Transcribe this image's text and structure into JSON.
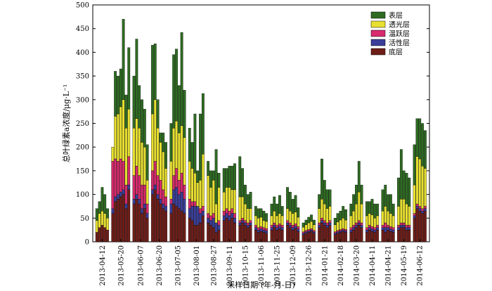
{
  "chart_data": {
    "type": "bar",
    "stacked": true,
    "xlabel": "采样日期 (年-月-日)",
    "ylabel": "总叶绿素a浓度/μg·L⁻¹",
    "ylim": [
      0,
      500
    ],
    "yticks": [
      0,
      50,
      100,
      150,
      200,
      250,
      300,
      350,
      400,
      450,
      500
    ],
    "grid": false,
    "legend_position": "top-right",
    "legend_order": [
      "表层",
      "透光层",
      "温跃层",
      "活性层",
      "底层"
    ],
    "groups": [
      {
        "date": "2013-04-12",
        "values": [
          {
            "bottom": 20,
            "active": 0,
            "thermo": 0,
            "photic": 25,
            "surface": 25
          },
          {
            "bottom": 30,
            "active": 0,
            "thermo": 0,
            "photic": 30,
            "surface": 25
          },
          {
            "bottom": 35,
            "active": 0,
            "thermo": 0,
            "photic": 30,
            "surface": 50
          },
          {
            "bottom": 30,
            "active": 0,
            "thermo": 0,
            "photic": 30,
            "surface": 40
          },
          {
            "bottom": 25,
            "active": 0,
            "thermo": 0,
            "photic": 25,
            "surface": 20
          }
        ]
      },
      {
        "date": "2013-05-20",
        "values": [
          {
            "bottom": 60,
            "active": 10,
            "thermo": 100,
            "photic": 30,
            "surface": 0
          },
          {
            "bottom": 85,
            "active": 10,
            "thermo": 80,
            "photic": 90,
            "surface": 95
          },
          {
            "bottom": 90,
            "active": 10,
            "thermo": 70,
            "photic": 100,
            "surface": 80
          },
          {
            "bottom": 95,
            "active": 10,
            "thermo": 70,
            "photic": 110,
            "surface": 80
          },
          {
            "bottom": 100,
            "active": 10,
            "thermo": 60,
            "photic": 130,
            "surface": 170
          },
          {
            "bottom": 70,
            "active": 10,
            "thermo": 40,
            "photic": 120,
            "surface": 70
          },
          {
            "bottom": 110,
            "active": 10,
            "thermo": 60,
            "photic": 100,
            "surface": 130
          }
        ]
      },
      {
        "date": "2013-06-07",
        "values": [
          {
            "bottom": 80,
            "active": 10,
            "thermo": 50,
            "photic": 100,
            "surface": 110
          },
          {
            "bottom": 90,
            "active": 10,
            "thermo": 60,
            "photic": 100,
            "surface": 168
          },
          {
            "bottom": 80,
            "active": 10,
            "thermo": 50,
            "photic": 100,
            "surface": 90
          },
          {
            "bottom": 60,
            "active": 10,
            "thermo": 50,
            "photic": 90,
            "surface": 90
          },
          {
            "bottom": 70,
            "active": 10,
            "thermo": 40,
            "photic": 80,
            "surface": 80
          },
          {
            "bottom": 50,
            "active": 10,
            "thermo": 20,
            "photic": 50,
            "surface": 75
          }
        ]
      },
      {
        "date": "2013-06-20",
        "values": [
          {
            "bottom": 100,
            "active": 10,
            "thermo": 40,
            "photic": 120,
            "surface": 145
          },
          {
            "bottom": 110,
            "active": 10,
            "thermo": 50,
            "photic": 130,
            "surface": 118
          },
          {
            "bottom": 90,
            "active": 10,
            "thermo": 40,
            "photic": 100,
            "surface": 60
          },
          {
            "bottom": 80,
            "active": 10,
            "thermo": 40,
            "photic": 80,
            "surface": 20
          },
          {
            "bottom": 70,
            "active": 10,
            "thermo": 30,
            "photic": 80,
            "surface": 40
          },
          {
            "bottom": 65,
            "active": 10,
            "thermo": 20,
            "photic": 60,
            "surface": 55
          }
        ]
      },
      {
        "date": "2013-07-05",
        "values": [
          {
            "bottom": 60,
            "active": 20,
            "thermo": 10,
            "photic": 80,
            "surface": 80
          },
          {
            "bottom": 80,
            "active": 30,
            "thermo": 30,
            "photic": 100,
            "surface": 155
          },
          {
            "bottom": 75,
            "active": 40,
            "thermo": 40,
            "photic": 100,
            "surface": 152
          },
          {
            "bottom": 70,
            "active": 30,
            "thermo": 30,
            "photic": 100,
            "surface": 100
          },
          {
            "bottom": 65,
            "active": 40,
            "thermo": 40,
            "photic": 100,
            "surface": 197
          },
          {
            "bottom": 60,
            "active": 30,
            "thermo": 30,
            "photic": 100,
            "surface": 100
          }
        ]
      },
      {
        "date": "2013-08-01",
        "values": [
          {
            "bottom": 50,
            "active": 20,
            "thermo": 20,
            "photic": 80,
            "surface": 70
          },
          {
            "bottom": 45,
            "active": 30,
            "thermo": 10,
            "photic": 70,
            "surface": 55
          },
          {
            "bottom": 35,
            "active": 40,
            "thermo": 10,
            "photic": 60,
            "surface": 125
          },
          {
            "bottom": 35,
            "active": 40,
            "thermo": 0,
            "photic": 50,
            "surface": 25
          },
          {
            "bottom": 40,
            "active": 20,
            "thermo": 10,
            "photic": 60,
            "surface": 140
          },
          {
            "bottom": 55,
            "active": 10,
            "thermo": 10,
            "photic": 110,
            "surface": 128
          }
        ]
      },
      {
        "date": "2013-08-27",
        "values": [
          {
            "bottom": 40,
            "active": 10,
            "thermo": 10,
            "photic": 80,
            "surface": 30
          },
          {
            "bottom": 35,
            "active": 10,
            "thermo": 10,
            "photic": 60,
            "surface": 35
          },
          {
            "bottom": 30,
            "active": 20,
            "thermo": 10,
            "photic": 70,
            "surface": 20
          },
          {
            "bottom": 20,
            "active": 20,
            "thermo": 0,
            "photic": 40,
            "surface": 115
          },
          {
            "bottom": 25,
            "active": 10,
            "thermo": 10,
            "photic": 70,
            "surface": 30
          }
        ]
      },
      {
        "date": "2013-09-11",
        "values": [
          {
            "bottom": 45,
            "active": 10,
            "thermo": 10,
            "photic": 40,
            "surface": 50
          },
          {
            "bottom": 50,
            "active": 10,
            "thermo": 10,
            "photic": 45,
            "surface": 40
          },
          {
            "bottom": 45,
            "active": 10,
            "thermo": 10,
            "photic": 50,
            "surface": 45
          },
          {
            "bottom": 50,
            "active": 10,
            "thermo": 10,
            "photic": 40,
            "surface": 50
          },
          {
            "bottom": 40,
            "active": 10,
            "thermo": 10,
            "photic": 50,
            "surface": 55
          }
        ]
      },
      {
        "date": "2013-10-15",
        "values": [
          {
            "bottom": 35,
            "active": 5,
            "thermo": 5,
            "photic": 50,
            "surface": 85
          },
          {
            "bottom": 40,
            "active": 5,
            "thermo": 5,
            "photic": 45,
            "surface": 60
          },
          {
            "bottom": 35,
            "active": 5,
            "thermo": 5,
            "photic": 35,
            "surface": 40
          },
          {
            "bottom": 30,
            "active": 5,
            "thermo": 5,
            "photic": 30,
            "surface": 30
          },
          {
            "bottom": 35,
            "active": 5,
            "thermo": 5,
            "photic": 25,
            "surface": 35
          }
        ]
      },
      {
        "date": "2013-11-06",
        "values": [
          {
            "bottom": 25,
            "active": 5,
            "thermo": 5,
            "photic": 20,
            "surface": 20
          },
          {
            "bottom": 20,
            "active": 5,
            "thermo": 5,
            "photic": 20,
            "surface": 20
          },
          {
            "bottom": 22,
            "active": 5,
            "thermo": 5,
            "photic": 20,
            "surface": 18
          },
          {
            "bottom": 20,
            "active": 5,
            "thermo": 5,
            "photic": 15,
            "surface": 20
          },
          {
            "bottom": 18,
            "active": 5,
            "thermo": 5,
            "photic": 15,
            "surface": 17
          }
        ]
      },
      {
        "date": "2013-11-25",
        "values": [
          {
            "bottom": 25,
            "active": 5,
            "thermo": 5,
            "photic": 20,
            "surface": 25
          },
          {
            "bottom": 30,
            "active": 5,
            "thermo": 5,
            "photic": 25,
            "surface": 30
          },
          {
            "bottom": 25,
            "active": 5,
            "thermo": 5,
            "photic": 20,
            "surface": 25
          },
          {
            "bottom": 28,
            "active": 5,
            "thermo": 5,
            "photic": 22,
            "surface": 38
          },
          {
            "bottom": 25,
            "active": 5,
            "thermo": 5,
            "photic": 20,
            "surface": 20
          }
        ]
      },
      {
        "date": "2013-12-09",
        "values": [
          {
            "bottom": 35,
            "active": 5,
            "thermo": 5,
            "photic": 25,
            "surface": 45
          },
          {
            "bottom": 30,
            "active": 5,
            "thermo": 5,
            "photic": 25,
            "surface": 40
          },
          {
            "bottom": 25,
            "active": 5,
            "thermo": 5,
            "photic": 25,
            "surface": 30
          },
          {
            "bottom": 28,
            "active": 5,
            "thermo": 5,
            "photic": 25,
            "surface": 35
          },
          {
            "bottom": 22,
            "active": 5,
            "thermo": 5,
            "photic": 20,
            "surface": 20
          }
        ]
      },
      {
        "date": "2013-12-26",
        "values": [
          {
            "bottom": 15,
            "active": 3,
            "thermo": 3,
            "photic": 10,
            "surface": 9
          },
          {
            "bottom": 18,
            "active": 3,
            "thermo": 3,
            "photic": 12,
            "surface": 10
          },
          {
            "bottom": 20,
            "active": 3,
            "thermo": 3,
            "photic": 14,
            "surface": 12
          },
          {
            "bottom": 22,
            "active": 3,
            "thermo": 3,
            "photic": 15,
            "surface": 14
          },
          {
            "bottom": 18,
            "active": 3,
            "thermo": 3,
            "photic": 12,
            "surface": 10
          }
        ]
      },
      {
        "date": "2014-01-21",
        "values": [
          {
            "bottom": 30,
            "active": 5,
            "thermo": 5,
            "photic": 30,
            "surface": 30
          },
          {
            "bottom": 40,
            "active": 5,
            "thermo": 5,
            "photic": 40,
            "surface": 85
          },
          {
            "bottom": 35,
            "active": 5,
            "thermo": 5,
            "photic": 35,
            "surface": 50
          },
          {
            "bottom": 30,
            "active": 5,
            "thermo": 5,
            "photic": 30,
            "surface": 40
          },
          {
            "bottom": 35,
            "active": 5,
            "thermo": 5,
            "photic": 30,
            "surface": 35
          }
        ]
      },
      {
        "date": "2014-02-18",
        "values": [
          {
            "bottom": 15,
            "active": 3,
            "thermo": 3,
            "photic": 15,
            "surface": 14
          },
          {
            "bottom": 18,
            "active": 3,
            "thermo": 3,
            "photic": 18,
            "surface": 18
          },
          {
            "bottom": 20,
            "active": 3,
            "thermo": 3,
            "photic": 20,
            "surface": 19
          },
          {
            "bottom": 22,
            "active": 3,
            "thermo": 3,
            "photic": 22,
            "surface": 25
          },
          {
            "bottom": 20,
            "active": 3,
            "thermo": 3,
            "photic": 20,
            "surface": 22
          }
        ]
      },
      {
        "date": "2014-03-20",
        "values": [
          {
            "bottom": 20,
            "active": 5,
            "thermo": 5,
            "photic": 25,
            "surface": 25
          },
          {
            "bottom": 25,
            "active": 5,
            "thermo": 5,
            "photic": 30,
            "surface": 35
          },
          {
            "bottom": 30,
            "active": 5,
            "thermo": 5,
            "photic": 40,
            "surface": 40
          },
          {
            "bottom": 35,
            "active": 5,
            "thermo": 5,
            "photic": 60,
            "surface": 65
          },
          {
            "bottom": 30,
            "active": 5,
            "thermo": 5,
            "photic": 40,
            "surface": 40
          }
        ]
      },
      {
        "date": "2014-04-11",
        "values": [
          {
            "bottom": 20,
            "active": 5,
            "thermo": 5,
            "photic": 25,
            "surface": 30
          },
          {
            "bottom": 25,
            "active": 5,
            "thermo": 5,
            "photic": 25,
            "surface": 25
          },
          {
            "bottom": 22,
            "active": 5,
            "thermo": 5,
            "photic": 25,
            "surface": 33
          },
          {
            "bottom": 20,
            "active": 5,
            "thermo": 5,
            "photic": 20,
            "surface": 30
          },
          {
            "bottom": 25,
            "active": 5,
            "thermo": 5,
            "photic": 20,
            "surface": 25
          }
        ]
      },
      {
        "date": "2014-04-21",
        "values": [
          {
            "bottom": 25,
            "active": 5,
            "thermo": 5,
            "photic": 30,
            "surface": 45
          },
          {
            "bottom": 20,
            "active": 10,
            "thermo": 10,
            "photic": 35,
            "surface": 45
          },
          {
            "bottom": 25,
            "active": 5,
            "thermo": 5,
            "photic": 30,
            "surface": 35
          },
          {
            "bottom": 22,
            "active": 5,
            "thermo": 5,
            "photic": 28,
            "surface": 40
          },
          {
            "bottom": 20,
            "active": 5,
            "thermo": 5,
            "photic": 25,
            "surface": 25
          }
        ]
      },
      {
        "date": "2014-05-19",
        "values": [
          {
            "bottom": 25,
            "active": 5,
            "thermo": 5,
            "photic": 40,
            "surface": 60
          },
          {
            "bottom": 30,
            "active": 5,
            "thermo": 5,
            "photic": 50,
            "surface": 105
          },
          {
            "bottom": 30,
            "active": 5,
            "thermo": 5,
            "photic": 50,
            "surface": 60
          },
          {
            "bottom": 25,
            "active": 5,
            "thermo": 5,
            "photic": 45,
            "surface": 65
          },
          {
            "bottom": 25,
            "active": 5,
            "thermo": 5,
            "photic": 40,
            "surface": 60
          }
        ]
      },
      {
        "date": "2014-06-12",
        "values": [
          {
            "bottom": 50,
            "active": 5,
            "thermo": 5,
            "photic": 60,
            "surface": 85
          },
          {
            "bottom": 70,
            "active": 5,
            "thermo": 5,
            "photic": 100,
            "surface": 80
          },
          {
            "bottom": 65,
            "active": 5,
            "thermo": 5,
            "photic": 100,
            "surface": 85
          },
          {
            "bottom": 60,
            "active": 5,
            "thermo": 5,
            "photic": 90,
            "surface": 90
          },
          {
            "bottom": 65,
            "active": 5,
            "thermo": 5,
            "photic": 80,
            "surface": 80
          }
        ]
      }
    ]
  },
  "legend": {
    "surface": "表层",
    "photic": "透光层",
    "thermo": "温跃层",
    "active": "活性层",
    "bottom": "底层"
  },
  "colors": {
    "surface": "#2e6b22",
    "photic": "#e8e030",
    "thermo": "#d82a6c",
    "active": "#3a3e9a",
    "bottom": "#6f1d18"
  }
}
